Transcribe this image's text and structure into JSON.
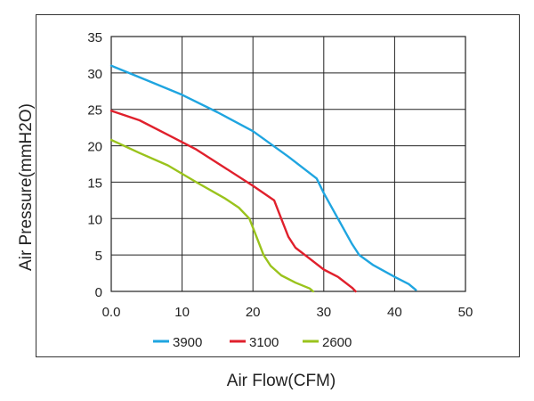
{
  "chart_data": {
    "type": "line",
    "title": "",
    "xlabel": "Air Flow(CFM)",
    "ylabel": "Air Pressure(mmH2O)",
    "xlim": [
      0,
      50
    ],
    "ylim": [
      0,
      35
    ],
    "x_ticks": [
      "0.0",
      "10",
      "20",
      "30",
      "40",
      "50"
    ],
    "y_ticks": [
      "0",
      "5",
      "10",
      "15",
      "20",
      "25",
      "30",
      "35"
    ],
    "grid": true,
    "legend_position": "bottom",
    "series": [
      {
        "name": "3900",
        "color": "#1fa5e0",
        "points": [
          [
            0,
            31
          ],
          [
            5,
            29
          ],
          [
            10,
            27
          ],
          [
            15,
            24.6
          ],
          [
            20,
            22
          ],
          [
            25,
            18.5
          ],
          [
            29,
            15.5
          ],
          [
            30,
            13.5
          ],
          [
            32,
            10
          ],
          [
            34,
            6.5
          ],
          [
            35,
            5
          ],
          [
            37,
            3.6
          ],
          [
            40,
            2
          ],
          [
            42,
            1
          ],
          [
            43,
            0.2
          ]
        ]
      },
      {
        "name": "3100",
        "color": "#e0202c",
        "points": [
          [
            0,
            24.8
          ],
          [
            4,
            23.5
          ],
          [
            8,
            21.5
          ],
          [
            12,
            19.5
          ],
          [
            16,
            17
          ],
          [
            20,
            14.5
          ],
          [
            23,
            12.5
          ],
          [
            24,
            10
          ],
          [
            25,
            7.5
          ],
          [
            26,
            6
          ],
          [
            28,
            4.5
          ],
          [
            30,
            3
          ],
          [
            32,
            2
          ],
          [
            34,
            0.5
          ],
          [
            34.5,
            0
          ]
        ]
      },
      {
        "name": "2600",
        "color": "#9ac31c",
        "points": [
          [
            0,
            20.8
          ],
          [
            4,
            19
          ],
          [
            8,
            17.3
          ],
          [
            12,
            15
          ],
          [
            16,
            12.8
          ],
          [
            18,
            11.5
          ],
          [
            19.5,
            10
          ],
          [
            20.5,
            7.5
          ],
          [
            21.5,
            5
          ],
          [
            22.5,
            3.5
          ],
          [
            24,
            2.2
          ],
          [
            26,
            1.2
          ],
          [
            28,
            0.4
          ],
          [
            28.5,
            0
          ]
        ]
      }
    ]
  }
}
